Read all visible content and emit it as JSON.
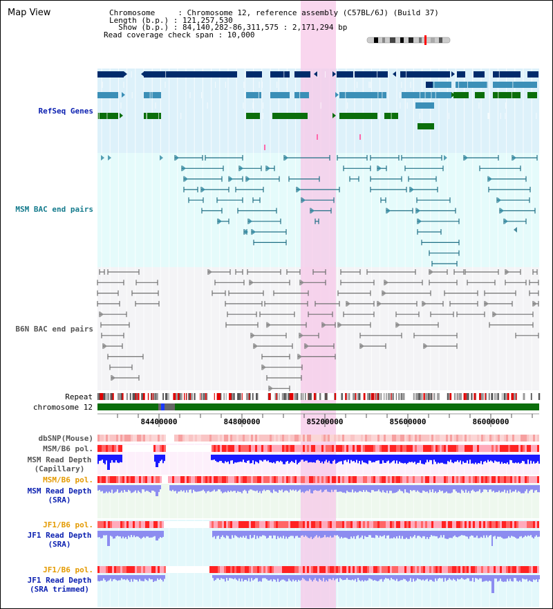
{
  "header": {
    "title": "Map View",
    "info_lines": [
      "Chromosome     : Chromosome 12, reference assembly (C57BL/6J) (Build 37)",
      "Length (b.p.) : 121,257,530",
      "  Show (b.p.) : 84,140,282-86,311,575 : 2,171,294 bp",
      "Read coverage check span : 10,000"
    ]
  },
  "tracks": {
    "refseq": "RefSeq Genes",
    "msm_bac": "MSM BAC end pairs",
    "b6n_bac": "B6N BAC end pairs",
    "repeat": "Repeat",
    "chromosome": "chromosome 12",
    "dbsnp": "dbSNP(Mouse)",
    "msm_pol_cap": "MSM/B6 pol.",
    "msm_depth_cap": [
      "MSM Read Depth",
      "(Capillary)"
    ],
    "msm_pol_sra": "MSM/B6 pol.",
    "msm_depth_sra": [
      "MSM Read Depth",
      "(SRA)"
    ],
    "jf1_pol_sra": "JF1/B6 pol.",
    "jf1_depth_sra": [
      "JF1 Read Depth",
      "(SRA)"
    ],
    "jf1_pol_trim": "JF1/B6 pol.",
    "jf1_depth_trim": [
      "JF1 Read Depth",
      "(SRA trimmed)"
    ]
  },
  "axis": {
    "ticks": [
      {
        "value": 84400000,
        "label": "84400000"
      },
      {
        "value": 84800000,
        "label": "84800000"
      },
      {
        "value": 85200000,
        "label": "85200000"
      },
      {
        "value": 85600000,
        "label": "85600000"
      },
      {
        "value": 86000000,
        "label": "86000000"
      }
    ]
  },
  "colors": {
    "refseq_dark": "#002b6b",
    "refseq_mid": "#3b8fb7",
    "refseq_green": "#0b6e0b",
    "msm_pair": "#1f6e84",
    "b6n_pair": "#707070",
    "highlight": "#f7c8e8",
    "chromosome": "#0b6e0b",
    "depth_cap": "#1a1aff",
    "depth_sra": "#8c8cf0",
    "label_blue": "#0a1fb0",
    "label_teal": "#137a8c",
    "label_gray": "#555555",
    "label_orange": "#e49a00"
  }
}
